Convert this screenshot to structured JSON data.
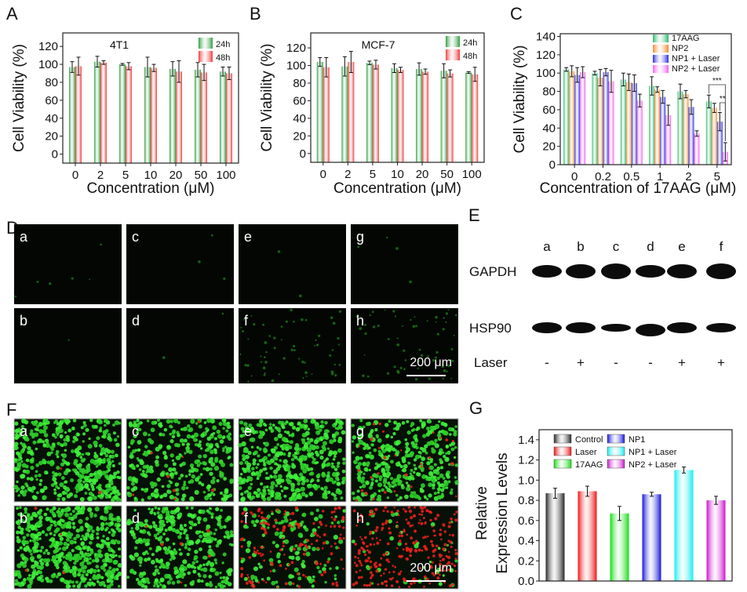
{
  "panels": {
    "A": "A",
    "B": "B",
    "C": "C",
    "D": "D",
    "E": "E",
    "F": "F",
    "G": "G"
  },
  "chart_data": [
    {
      "id": "A",
      "type": "bar",
      "title": "4T1",
      "xlabel": "Concentration (μM)",
      "ylabel": "Cell Viability (%)",
      "ylim": [
        -10,
        135
      ],
      "yticks": [
        0,
        20,
        40,
        60,
        80,
        100,
        120
      ],
      "categories": [
        "0",
        "2",
        "5",
        "10",
        "20",
        "50",
        "100"
      ],
      "legend_position": "top-right",
      "series": [
        {
          "name": "24h",
          "color": "#2e9e3e",
          "values": [
            97,
            103,
            100,
            97,
            95,
            94,
            92
          ],
          "errors": [
            6,
            6,
            1,
            11,
            8,
            8,
            5
          ]
        },
        {
          "name": "48h",
          "color": "#f03a3a",
          "values": [
            98,
            102,
            98,
            96,
            92,
            91,
            90
          ],
          "errors": [
            10,
            2,
            4,
            4,
            12,
            9,
            7
          ]
        }
      ]
    },
    {
      "id": "B",
      "type": "bar",
      "title": "MCF-7",
      "xlabel": "Concentration (μM)",
      "ylabel": "Cell Viability (%)",
      "ylim": [
        -10,
        137
      ],
      "yticks": [
        0,
        20,
        40,
        60,
        80,
        100,
        120
      ],
      "categories": [
        "0",
        "2",
        "5",
        "10",
        "20",
        "50",
        "100"
      ],
      "legend_position": "top-right",
      "series": [
        {
          "name": "24h",
          "color": "#2e9e3e",
          "values": [
            104,
            99,
            103,
            97,
            96,
            94,
            92
          ],
          "errors": [
            5,
            11,
            2,
            5,
            7,
            8,
            1
          ]
        },
        {
          "name": "48h",
          "color": "#f03a3a",
          "values": [
            98,
            104,
            101,
            95,
            93,
            91,
            90
          ],
          "errors": [
            11,
            12,
            5,
            3,
            3,
            4,
            8
          ]
        }
      ]
    },
    {
      "id": "C",
      "type": "bar",
      "title": "",
      "xlabel": "Concentration of 17AAG (μM)",
      "ylabel": "Cell Viability (%)",
      "ylim": [
        0,
        143
      ],
      "yticks": [
        0,
        20,
        40,
        60,
        80,
        100,
        120,
        140
      ],
      "categories": [
        "0",
        "0.2",
        "0.5",
        "1",
        "2",
        "5"
      ],
      "legend_position": "top-right",
      "series": [
        {
          "name": "17AAG",
          "color": "#27b86a",
          "values": [
            104,
            100,
            93,
            86,
            80,
            69
          ],
          "errors": [
            2,
            2,
            7,
            10,
            8,
            7
          ]
        },
        {
          "name": "NP2",
          "color": "#f08a30",
          "values": [
            102,
            95,
            90,
            82,
            77,
            62
          ],
          "errors": [
            6,
            9,
            9,
            3,
            4,
            5
          ]
        },
        {
          "name": "NP1 + Laser",
          "color": "#2a2ae0",
          "values": [
            98,
            101,
            89,
            74,
            63,
            47
          ],
          "errors": [
            8,
            4,
            9,
            7,
            8,
            10
          ]
        },
        {
          "name": "NP2 + Laser",
          "color": "#f060f0",
          "values": [
            101,
            91,
            70,
            54,
            34,
            14
          ],
          "errors": [
            6,
            12,
            7,
            11,
            3,
            10
          ]
        }
      ],
      "annotations": [
        {
          "text": "***",
          "category": "5",
          "from": "17AAG",
          "to": "NP2 + Laser"
        },
        {
          "text": "**",
          "category": "5",
          "from": "NP1 + Laser",
          "to": "NP2 + Laser"
        }
      ]
    },
    {
      "id": "G",
      "type": "bar",
      "title": "",
      "xlabel": "",
      "ylabel": [
        "Relative",
        "Expression Levels"
      ],
      "ylim": [
        0,
        1.5
      ],
      "yticks": [
        "0.0",
        "0.2",
        "0.4",
        "0.6",
        "0.8",
        "1.0",
        "1.2",
        "1.4"
      ],
      "categories": [
        "Control",
        "Laser",
        "17AAG",
        "NP1",
        "NP1 + Laser",
        "NP2 + Laser"
      ],
      "legend_position": "top",
      "colors": [
        "#222222",
        "#ee1111",
        "#11dd11",
        "#1111dd",
        "#11eeee",
        "#cc11cc"
      ],
      "values": [
        0.87,
        0.89,
        0.67,
        0.86,
        1.1,
        0.8
      ],
      "errors": [
        0.05,
        0.05,
        0.07,
        0.02,
        0.03,
        0.04
      ]
    }
  ],
  "fluorescence_D": {
    "labels": [
      "a",
      "c",
      "e",
      "g",
      "b",
      "d",
      "f",
      "h"
    ],
    "green_density": [
      6,
      3,
      2,
      4,
      1,
      2,
      60,
      60
    ],
    "scale_bar": "200 μm"
  },
  "western_E": {
    "lanes": [
      "a",
      "b",
      "c",
      "d",
      "e",
      "f"
    ],
    "rows": [
      "GAPDH",
      "HSP90"
    ],
    "laser_label": "Laser",
    "laser": [
      "-",
      "+",
      "-",
      "-",
      "+",
      "+"
    ]
  },
  "livedead_F": {
    "labels": [
      "a",
      "c",
      "e",
      "g",
      "b",
      "d",
      "f",
      "h"
    ],
    "green_density": [
      420,
      330,
      460,
      380,
      520,
      360,
      150,
      40
    ],
    "red_density": [
      2,
      8,
      0,
      30,
      4,
      6,
      150,
      260
    ],
    "scale_bar": "200 μm"
  }
}
